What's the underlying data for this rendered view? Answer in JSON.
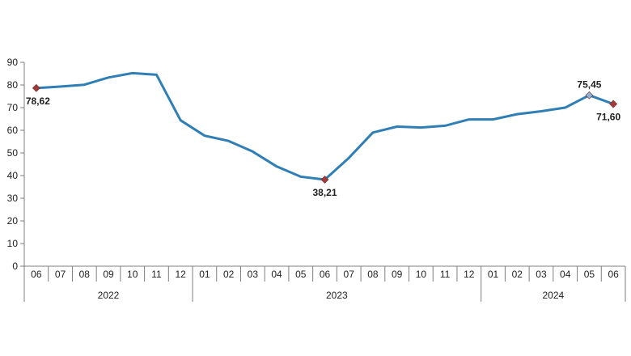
{
  "chart_data": {
    "type": "line",
    "title": "",
    "xlabel": "",
    "ylabel": "",
    "ylim": [
      0,
      90
    ],
    "yticks": [
      0,
      10,
      20,
      30,
      40,
      50,
      60,
      70,
      80,
      90
    ],
    "grid": false,
    "legend": "none",
    "categories": [
      "06",
      "07",
      "08",
      "09",
      "10",
      "11",
      "12",
      "01",
      "02",
      "03",
      "04",
      "05",
      "06",
      "07",
      "08",
      "09",
      "10",
      "11",
      "12",
      "01",
      "02",
      "03",
      "04",
      "05",
      "06"
    ],
    "year_groups": [
      {
        "label": "2022",
        "start": 0,
        "end": 6
      },
      {
        "label": "2023",
        "start": 7,
        "end": 18
      },
      {
        "label": "2024",
        "start": 19,
        "end": 24
      }
    ],
    "series": [
      {
        "color": "#2f7fb6",
        "values": [
          78.62,
          79.3,
          80.1,
          83.3,
          85.2,
          84.5,
          64.4,
          57.6,
          55.3,
          50.6,
          44.0,
          39.5,
          38.21,
          47.8,
          59.0,
          61.6,
          61.2,
          62.0,
          64.8,
          64.8,
          67.1,
          68.4,
          70.0,
          75.45,
          71.6
        ]
      }
    ],
    "markers": [
      {
        "index": 0,
        "label": "78,62",
        "color": "#a23a3a",
        "position": "below"
      },
      {
        "index": 12,
        "label": "38,21",
        "color": "#a23a3a",
        "position": "below"
      },
      {
        "index": 23,
        "label": "75,45",
        "color": "#8fb3d6",
        "position": "above"
      },
      {
        "index": 24,
        "label": "71,60",
        "color": "#a23a3a",
        "position": "below"
      }
    ]
  }
}
